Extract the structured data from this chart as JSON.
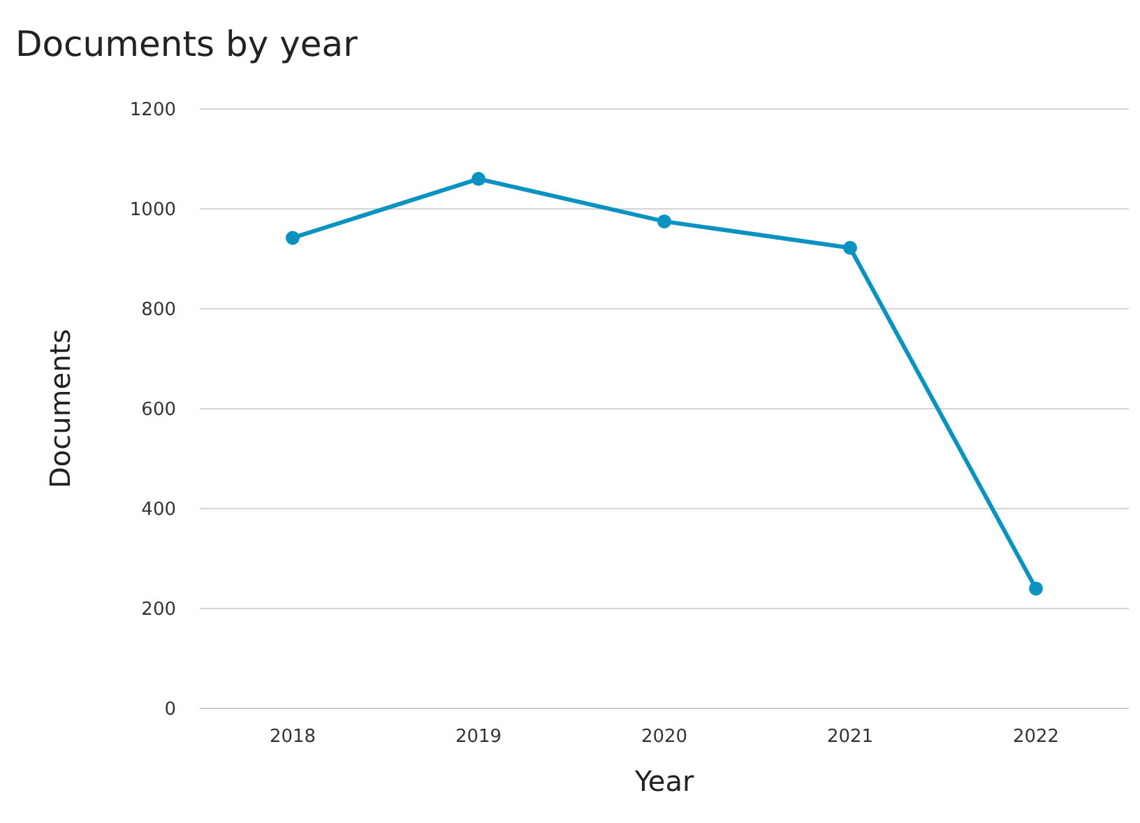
{
  "chart_data": {
    "type": "line",
    "title": "Documents by year",
    "xlabel": "Year",
    "ylabel": "Documents",
    "categories": [
      "2018",
      "2019",
      "2020",
      "2021",
      "2022"
    ],
    "series": [
      {
        "color": "#0a93c0",
        "values": [
          942,
          1060,
          975,
          922,
          240
        ]
      }
    ],
    "ylim": [
      0,
      1200
    ],
    "yticks": [
      0,
      200,
      400,
      600,
      800,
      1000,
      1200
    ],
    "grid": "y",
    "marker": "circle",
    "line_style": "solid"
  }
}
